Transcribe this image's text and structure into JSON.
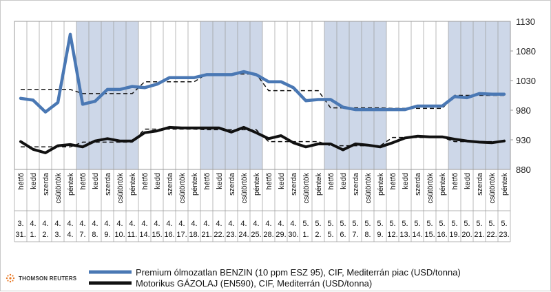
{
  "chart_data": {
    "type": "line",
    "ylim": [
      880,
      1130
    ],
    "yticks": [
      880,
      930,
      980,
      1030,
      1080,
      1130
    ],
    "x": [
      {
        "day": "hétfő",
        "date": "3. 31."
      },
      {
        "day": "kedd",
        "date": "4. 1."
      },
      {
        "day": "szerda",
        "date": "4. 2."
      },
      {
        "day": "csütörtök",
        "date": "4. 3."
      },
      {
        "day": "péntek",
        "date": "4. 4."
      },
      {
        "day": "hétfő",
        "date": "4. 7."
      },
      {
        "day": "kedd",
        "date": "4. 8."
      },
      {
        "day": "szerda",
        "date": "4. 9."
      },
      {
        "day": "csütörtök",
        "date": "4. 10."
      },
      {
        "day": "péntek",
        "date": "4. 11."
      },
      {
        "day": "hétfő",
        "date": "4. 14."
      },
      {
        "day": "kedd",
        "date": "4. 15."
      },
      {
        "day": "szerda",
        "date": "4. 16."
      },
      {
        "day": "csütörtök",
        "date": "4. 17."
      },
      {
        "day": "péntek",
        "date": "4. 18."
      },
      {
        "day": "hétfő",
        "date": "4. 21."
      },
      {
        "day": "kedd",
        "date": "4. 22."
      },
      {
        "day": "szerda",
        "date": "4. 23."
      },
      {
        "day": "csütörtök",
        "date": "4. 24."
      },
      {
        "day": "péntek",
        "date": "4. 25."
      },
      {
        "day": "hétfő",
        "date": "4. 28."
      },
      {
        "day": "kedd",
        "date": "4. 29."
      },
      {
        "day": "szerda",
        "date": "4. 30."
      },
      {
        "day": "csütörtök",
        "date": "5. 1."
      },
      {
        "day": "péntek",
        "date": "5. 2."
      },
      {
        "day": "hétfő",
        "date": "5. 5."
      },
      {
        "day": "kedd",
        "date": "5. 6."
      },
      {
        "day": "szerda",
        "date": "5. 7."
      },
      {
        "day": "csütörtök",
        "date": "5. 8."
      },
      {
        "day": "péntek",
        "date": "5. 9."
      },
      {
        "day": "hétfő",
        "date": "5. 12."
      },
      {
        "day": "kedd",
        "date": "5. 13."
      },
      {
        "day": "szerda",
        "date": "5. 14."
      },
      {
        "day": "csütörtök",
        "date": "5. 15."
      },
      {
        "day": "péntek",
        "date": "5. 16."
      },
      {
        "day": "hétfő",
        "date": "5. 19."
      },
      {
        "day": "kedd",
        "date": "5. 20."
      },
      {
        "day": "szerda",
        "date": "5. 21."
      },
      {
        "day": "csütörtök",
        "date": "5. 22."
      },
      {
        "day": "péntek",
        "date": "5. 23."
      }
    ],
    "shaded_weeks": [
      1,
      3,
      5,
      7
    ],
    "series": [
      {
        "name": "Premium ólmozatlan BENZIN (10 ppm ESZ 95), CIF, Mediterrán piac (USD/tonna)",
        "color": "#4a78b4",
        "values": [
          1000,
          997,
          977,
          993,
          1108,
          990,
          995,
          1015,
          1015,
          1020,
          1018,
          1024,
          1035,
          1035,
          1035,
          1040,
          1040,
          1040,
          1045,
          1040,
          1028,
          1028,
          1018,
          996,
          998,
          998,
          985,
          981,
          981,
          981,
          981,
          981,
          987,
          987,
          987,
          1003,
          1001,
          1008,
          1007,
          1007
        ],
        "weekly_avg": [
          1015,
          1008,
          1028,
          1041,
          1013,
          984,
          983,
          1005
        ]
      },
      {
        "name": "Motorikus GÁZOLAJ (EN590), CIF, Mediterrán (USD/tonna)",
        "color": "#111111",
        "values": [
          927,
          914,
          908,
          920,
          922,
          918,
          928,
          932,
          928,
          928,
          942,
          945,
          951,
          950,
          950,
          950,
          950,
          943,
          951,
          942,
          932,
          937,
          925,
          918,
          923,
          923,
          913,
          923,
          921,
          918,
          925,
          933,
          936,
          935,
          935,
          931,
          928,
          926,
          925,
          928
        ],
        "weekly_avg": [
          918,
          926,
          948,
          947,
          927,
          920,
          934,
          927
        ]
      }
    ]
  },
  "legend": {
    "benzin": "Premium ólmozatlan BENZIN (10 ppm ESZ 95), CIF, Mediterrán piac (USD/tonna)",
    "gazolaj": "Motorikus GÁZOLAJ (EN590), CIF, Mediterrán (USD/tonna)"
  },
  "logo": {
    "text": "THOMSON REUTERS"
  }
}
